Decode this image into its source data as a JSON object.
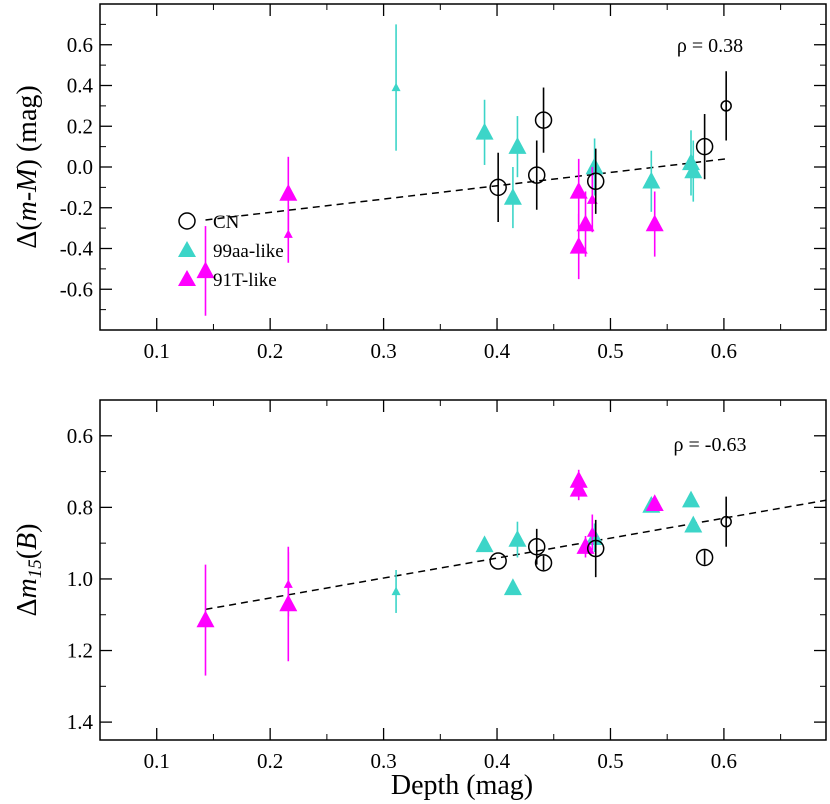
{
  "colors": {
    "cn": "#000000",
    "aa99": "#3cd5c8",
    "t91": "#ff00ff",
    "axis": "#000000"
  },
  "chart_data": [
    {
      "type": "scatter",
      "id": "top",
      "ylabel_parts": [
        "Δ(",
        "m-M",
        ") (mag)"
      ],
      "annotation": "ρ = 0.38",
      "xlim": [
        0.05,
        0.69
      ],
      "ylim": [
        0.8,
        -0.8
      ],
      "x_ticks": [
        0.1,
        0.2,
        0.3,
        0.4,
        0.5,
        0.6
      ],
      "x_tick_labels": [
        "0.1",
        "0.2",
        "0.3",
        "0.4",
        "0.5",
        "0.6"
      ],
      "y_ticks": [
        -0.6,
        -0.4,
        -0.2,
        0.0,
        0.2,
        0.4,
        0.6
      ],
      "y_tick_labels": [
        "-0.6",
        "-0.4",
        "-0.2",
        "0.0",
        "0.2",
        "0.4",
        "0.6"
      ],
      "fit_line": {
        "x": [
          0.143,
          0.602
        ],
        "y": [
          -0.26,
          0.04
        ]
      },
      "legend": [
        {
          "key": "cn",
          "label": "CN",
          "marker": "circle"
        },
        {
          "key": "aa99",
          "label": "99aa-like",
          "marker": "triangle"
        },
        {
          "key": "t91",
          "label": "91T-like",
          "marker": "triangle"
        }
      ],
      "series": [
        {
          "name": "CN",
          "key": "cn",
          "marker": "circle",
          "points": [
            {
              "x": 0.401,
              "y": -0.1,
              "err": 0.17,
              "size": 1
            },
            {
              "x": 0.435,
              "y": -0.04,
              "err": 0.17,
              "size": 1
            },
            {
              "x": 0.441,
              "y": 0.23,
              "err": 0.16,
              "size": 1
            },
            {
              "x": 0.487,
              "y": -0.07,
              "err": 0.16,
              "size": 1
            },
            {
              "x": 0.583,
              "y": 0.1,
              "err": 0.16,
              "size": 1
            },
            {
              "x": 0.602,
              "y": 0.3,
              "err": 0.17,
              "size": 0.5
            }
          ]
        },
        {
          "name": "99aa-like",
          "key": "aa99",
          "marker": "triangle",
          "points": [
            {
              "x": 0.311,
              "y": 0.39,
              "err": 0.31,
              "size": 0.5
            },
            {
              "x": 0.389,
              "y": 0.17,
              "err": 0.16,
              "size": 1
            },
            {
              "x": 0.414,
              "y": -0.15,
              "err": 0.15,
              "size": 1
            },
            {
              "x": 0.418,
              "y": 0.1,
              "err": 0.15,
              "size": 1
            },
            {
              "x": 0.486,
              "y": 0.0,
              "err": 0.14,
              "size": 1
            },
            {
              "x": 0.536,
              "y": -0.07,
              "err": 0.15,
              "size": 1
            },
            {
              "x": 0.571,
              "y": 0.02,
              "err": 0.16,
              "size": 1
            },
            {
              "x": 0.573,
              "y": -0.02,
              "err": 0.15,
              "size": 1
            }
          ]
        },
        {
          "name": "91T-like",
          "key": "t91",
          "marker": "triangle",
          "points": [
            {
              "x": 0.143,
              "y": -0.51,
              "err": 0.22,
              "size": 1
            },
            {
              "x": 0.216,
              "y": -0.33,
              "err": 0.14,
              "size": 0.5
            },
            {
              "x": 0.216,
              "y": -0.13,
              "err": 0.18,
              "size": 1
            },
            {
              "x": 0.472,
              "y": -0.39,
              "err": 0.16,
              "size": 1
            },
            {
              "x": 0.472,
              "y": -0.12,
              "err": 0.16,
              "size": 1
            },
            {
              "x": 0.478,
              "y": -0.28,
              "err": 0.16,
              "size": 1
            },
            {
              "x": 0.484,
              "y": -0.16,
              "err": 0.16,
              "size": 0.6
            },
            {
              "x": 0.539,
              "y": -0.28,
              "err": 0.16,
              "size": 1
            }
          ]
        }
      ]
    },
    {
      "type": "scatter",
      "id": "bottom",
      "ylabel_parts": [
        "Δ",
        "m",
        "15",
        "(",
        "B",
        ")"
      ],
      "xlabel": "Depth (mag)",
      "annotation": "ρ = -0.63",
      "xlim": [
        0.05,
        0.69
      ],
      "ylim": [
        0.5,
        1.45
      ],
      "x_ticks": [
        0.1,
        0.2,
        0.3,
        0.4,
        0.5,
        0.6
      ],
      "x_tick_labels": [
        "0.1",
        "0.2",
        "0.3",
        "0.4",
        "0.5",
        "0.6"
      ],
      "y_ticks": [
        0.6,
        0.8,
        1.0,
        1.2,
        1.4
      ],
      "y_tick_labels": [
        "0.6",
        "0.8",
        "1.0",
        "1.2",
        "1.4"
      ],
      "fit_line": {
        "x": [
          0.143,
          0.69
        ],
        "y": [
          1.085,
          0.78
        ]
      },
      "series": [
        {
          "name": "CN",
          "key": "cn",
          "marker": "circle",
          "points": [
            {
              "x": 0.401,
              "y": 0.95,
              "err": 0.0,
              "size": 1
            },
            {
              "x": 0.435,
              "y": 0.91,
              "err": 0.05,
              "size": 1
            },
            {
              "x": 0.441,
              "y": 0.955,
              "err": 0.02,
              "size": 1
            },
            {
              "x": 0.487,
              "y": 0.915,
              "err": 0.08,
              "size": 1
            },
            {
              "x": 0.583,
              "y": 0.94,
              "err": 0.02,
              "size": 1
            },
            {
              "x": 0.602,
              "y": 0.84,
              "err": 0.07,
              "size": 0.5
            }
          ]
        },
        {
          "name": "99aa-like",
          "key": "aa99",
          "marker": "triangle",
          "points": [
            {
              "x": 0.311,
              "y": 1.035,
              "err": 0.06,
              "size": 0.5
            },
            {
              "x": 0.389,
              "y": 0.905,
              "err": 0.0,
              "size": 1
            },
            {
              "x": 0.414,
              "y": 1.025,
              "err": 0.0,
              "size": 1
            },
            {
              "x": 0.418,
              "y": 0.89,
              "err": 0.05,
              "size": 1
            },
            {
              "x": 0.486,
              "y": 0.885,
              "err": 0.04,
              "size": 1
            },
            {
              "x": 0.536,
              "y": 0.795,
              "err": 0.0,
              "size": 1
            },
            {
              "x": 0.571,
              "y": 0.78,
              "err": 0.0,
              "size": 1
            },
            {
              "x": 0.573,
              "y": 0.85,
              "err": 0.0,
              "size": 1
            }
          ]
        },
        {
          "name": "91T-like",
          "key": "t91",
          "marker": "triangle",
          "points": [
            {
              "x": 0.143,
              "y": 1.115,
              "err": 0.155,
              "size": 1
            },
            {
              "x": 0.216,
              "y": 1.015,
              "err": 0.09,
              "size": 0.5
            },
            {
              "x": 0.216,
              "y": 1.07,
              "err": 0.16,
              "size": 1
            },
            {
              "x": 0.472,
              "y": 0.725,
              "err": 0.03,
              "size": 1
            },
            {
              "x": 0.472,
              "y": 0.75,
              "err": 0.03,
              "size": 1
            },
            {
              "x": 0.478,
              "y": 0.91,
              "err": 0.03,
              "size": 1
            },
            {
              "x": 0.484,
              "y": 0.87,
              "err": 0.05,
              "size": 0.6
            },
            {
              "x": 0.539,
              "y": 0.79,
              "err": 0.02,
              "size": 1
            }
          ]
        }
      ]
    }
  ]
}
